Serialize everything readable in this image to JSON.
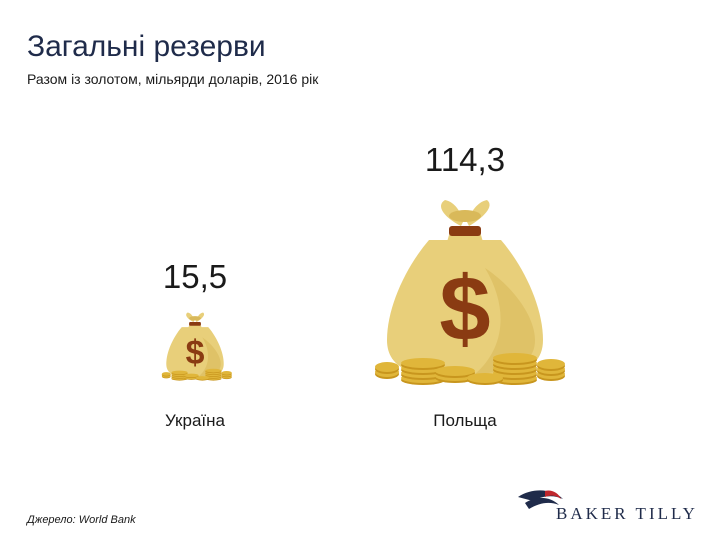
{
  "title": "Загальні резерви",
  "subtitle": "Разом із золотом, мільярди доларів, 2016 рік",
  "source": "Джерело: World Bank",
  "logo": {
    "text": "BAKER TILLY"
  },
  "chart_data": {
    "type": "bar",
    "categories": [
      "Україна",
      "Польща"
    ],
    "values": [
      15.5,
      114.3
    ],
    "value_labels": [
      "15,5",
      "114,3"
    ],
    "title": "Загальні резерви",
    "subtitle": "Разом із золотом, мільярди доларів, 2016 рік",
    "xlabel": "",
    "ylabel": "",
    "grid": false,
    "legend": "none"
  },
  "colors": {
    "bag": "#e8cf7a",
    "bag_shadow": "#d9b95a",
    "tie": "#8a3b12",
    "dollar": "#8a3b12",
    "coin": "#e0b63a",
    "coin_edge": "#c8961e",
    "title": "#1f2b4a",
    "logo_red": "#c0272d",
    "logo_navy": "#1f2b4a"
  },
  "icons": {
    "bag": "money-bag-icon",
    "logo": "baker-tilly-logo-icon"
  }
}
